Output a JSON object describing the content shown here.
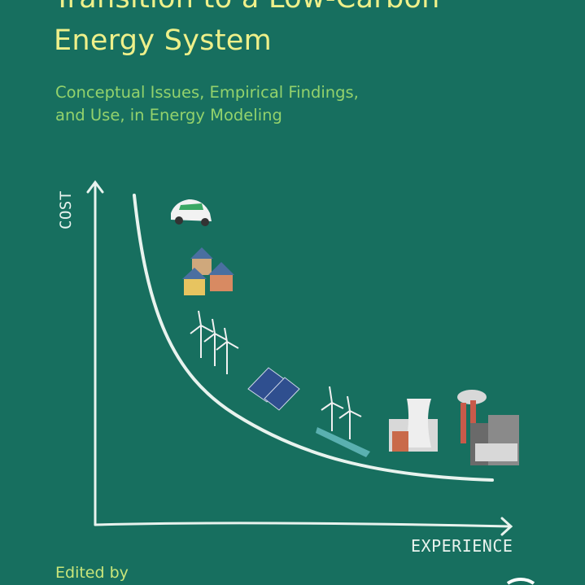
{
  "cover": {
    "title_lines": [
      "Transition to a Low-Carbon",
      "Energy System"
    ],
    "subtitle_lines": [
      "Conceptual Issues, Empirical Findings,",
      "and Use, in Energy Modeling"
    ],
    "y_axis_label": "COST",
    "x_axis_label": "EXPERIENCE",
    "edited_by": "Edited by"
  },
  "colors": {
    "background": "#176f5f",
    "title": "#eef08a",
    "subtitle": "#93d26c",
    "chalk": "#e8f3ee"
  },
  "illustrations": [
    "electric-car-icon",
    "solar-houses-icon",
    "wind-turbines-icon",
    "solar-panels-icon",
    "offshore-wind-icon",
    "nuclear-plant-icon",
    "coal-plant-icon"
  ]
}
